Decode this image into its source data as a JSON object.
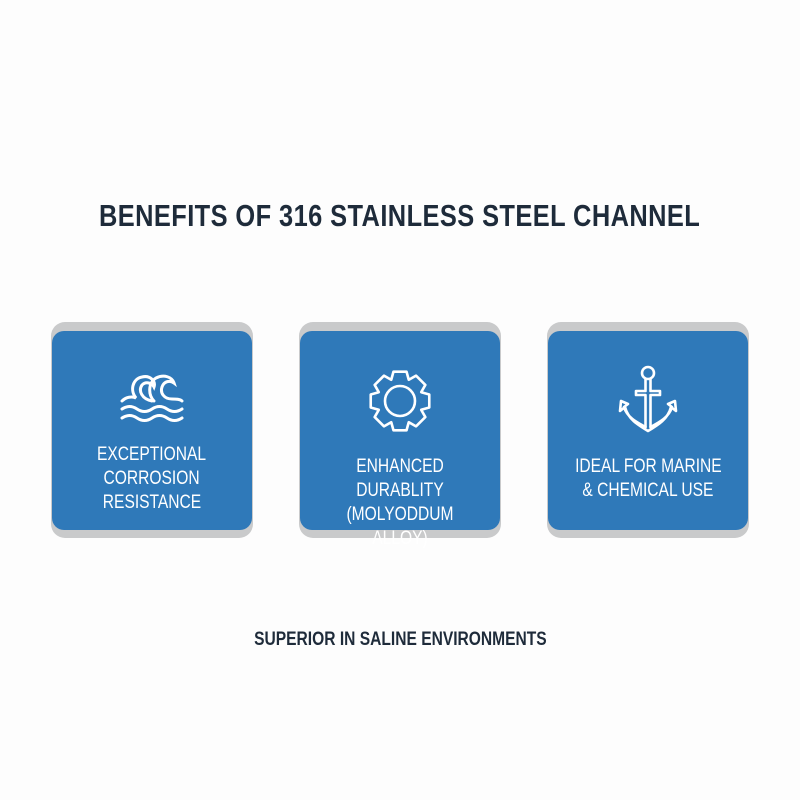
{
  "title": "BENEFITS OF 316 STAINLESS STEEL CHANNEL",
  "cards": [
    {
      "icon": "waves-icon",
      "lines": [
        "EXCEPTIONAL",
        "CORROSION",
        "RESISTANCE"
      ]
    },
    {
      "icon": "gear-icon",
      "lines": [
        "ENHANCED DURABLITY",
        "(MOLYODDUM ALLOY)"
      ]
    },
    {
      "icon": "anchor-icon",
      "lines": [
        "IDEAL FOR MARINE",
        "& CHEMICAL USE"
      ]
    }
  ],
  "subtitle": "SUPERIOR IN SALINE ENVIRONMENTS",
  "colors": {
    "card": "#2f79b9",
    "card_shadow": "#c9cacb",
    "text": "#1e2b3a"
  }
}
